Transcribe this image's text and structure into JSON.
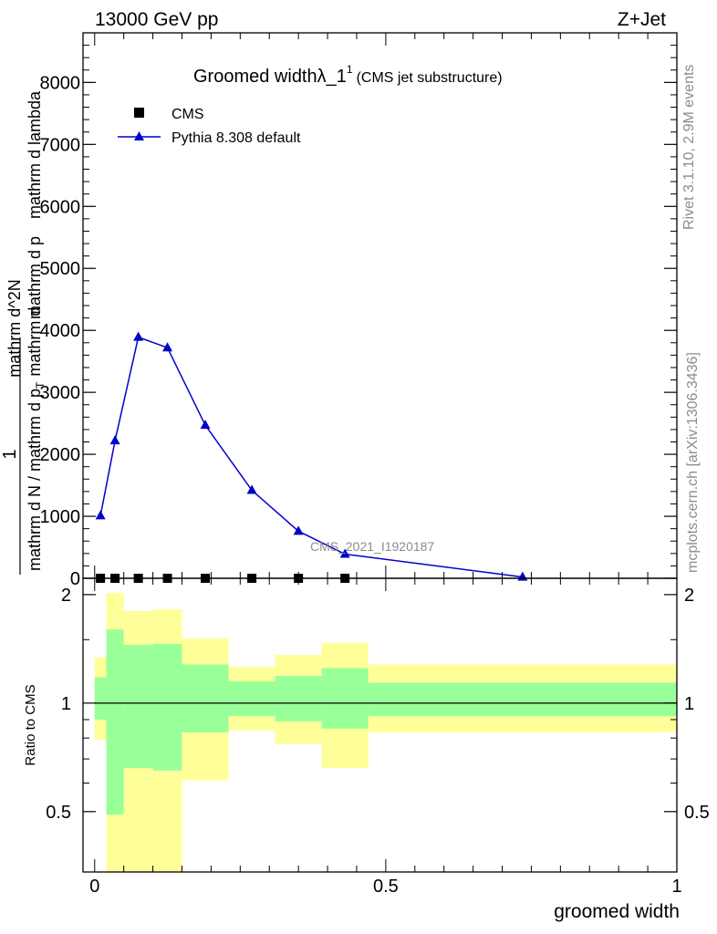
{
  "header": {
    "left": "13000 GeV pp",
    "right": "Z+Jet"
  },
  "side": {
    "rivet": "Rivet 3.1.10,  2.9M events",
    "mcplots": "mcplots.cern.ch [arXiv:1306.3436]"
  },
  "chart_data": [
    {
      "type": "line",
      "title_main": "Groomed widthλ_1",
      "title_sup": "1",
      "title_sub": "(CMS jet substructure)",
      "analysis_label": "CMS_2021_I1920187",
      "ylabel_numerator": "1",
      "ylabel_denominator_text": "mathrm d N / mathrm d p",
      "ylabel_overlap_text": "mathrm d",
      "ylabel_top_text": "mathrm d^2N",
      "ylabel_top_sub": "mathrm d p",
      "ylabel_top_extra": "mathrm d lambda",
      "xlim": [
        -0.02,
        1.0
      ],
      "ylim": [
        0,
        8800
      ],
      "yticks": [
        0,
        1000,
        2000,
        3000,
        4000,
        5000,
        6000,
        7000,
        8000
      ],
      "ytick_labels": [
        "0",
        "1000",
        "2000",
        "3000",
        "4000",
        "5000",
        "6000",
        "7000",
        "8000"
      ],
      "legend_position": "top-left",
      "series": [
        {
          "name": "CMS",
          "marker": "square",
          "color": "#000000",
          "x": [
            0.01,
            0.035,
            0.075,
            0.125,
            0.19,
            0.27,
            0.35,
            0.43
          ],
          "y": [
            0,
            0,
            0,
            0,
            0,
            0,
            0,
            0
          ]
        },
        {
          "name": "Pythia 8.308 default",
          "marker": "triangle",
          "color": "#0000cc",
          "x": [
            0.01,
            0.035,
            0.075,
            0.125,
            0.19,
            0.27,
            0.35,
            0.43,
            0.735
          ],
          "y": [
            1010,
            2220,
            3890,
            3720,
            2470,
            1420,
            760,
            390,
            20
          ]
        }
      ]
    },
    {
      "type": "area",
      "ylabel": "Ratio to CMS",
      "xlabel": "groomed width",
      "xlim": [
        -0.02,
        1.0
      ],
      "ylim": [
        0.34,
        2.22
      ],
      "ytick_labels": [
        "0.5",
        "1",
        "2"
      ],
      "yticks": [
        0.5,
        1,
        2
      ],
      "xtick_labels": [
        "0",
        "0.5",
        "1"
      ],
      "xticks": [
        0,
        0.5,
        1
      ],
      "reference_line": 1,
      "bins": [
        {
          "x0": 0.0,
          "x1": 0.02,
          "y_lo": 0.79,
          "y_hi": 1.34,
          "g_lo": 0.9,
          "g_hi": 1.18
        },
        {
          "x0": 0.02,
          "x1": 0.05,
          "y_lo": 0.34,
          "y_hi": 2.02,
          "g_lo": 0.49,
          "g_hi": 1.6
        },
        {
          "x0": 0.05,
          "x1": 0.1,
          "y_lo": 0.34,
          "y_hi": 1.8,
          "g_lo": 0.66,
          "g_hi": 1.45
        },
        {
          "x0": 0.1,
          "x1": 0.15,
          "y_lo": 0.34,
          "y_hi": 1.82,
          "g_lo": 0.65,
          "g_hi": 1.46
        },
        {
          "x0": 0.15,
          "x1": 0.23,
          "y_lo": 0.61,
          "y_hi": 1.51,
          "g_lo": 0.83,
          "g_hi": 1.28
        },
        {
          "x0": 0.23,
          "x1": 0.31,
          "y_lo": 0.84,
          "y_hi": 1.26,
          "g_lo": 0.92,
          "g_hi": 1.15
        },
        {
          "x0": 0.31,
          "x1": 0.39,
          "y_lo": 0.77,
          "y_hi": 1.36,
          "g_lo": 0.89,
          "g_hi": 1.19
        },
        {
          "x0": 0.39,
          "x1": 0.47,
          "y_lo": 0.66,
          "y_hi": 1.47,
          "g_lo": 0.85,
          "g_hi": 1.25
        },
        {
          "x0": 0.47,
          "x1": 1.0,
          "y_lo": 0.83,
          "y_hi": 1.28,
          "g_lo": 0.92,
          "g_hi": 1.14
        }
      ],
      "band_colors": {
        "outer": "#ffff99",
        "inner": "#99ff99"
      }
    }
  ]
}
